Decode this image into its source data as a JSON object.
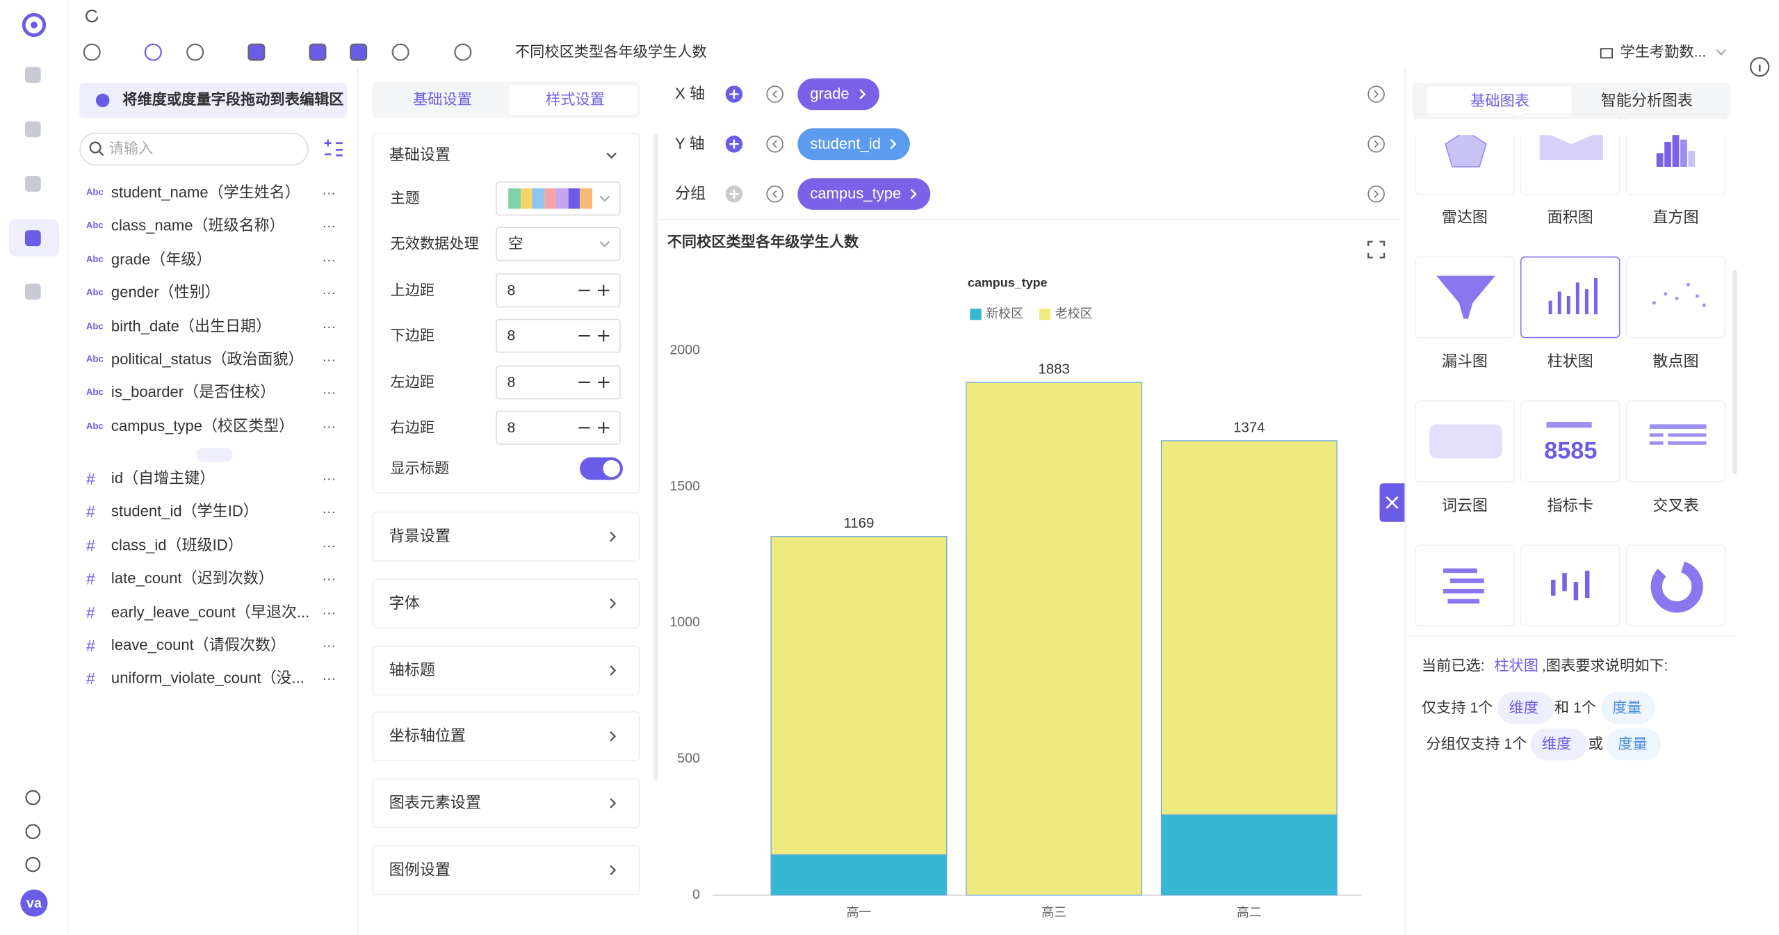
{
  "sidebar": {
    "avatar": "va"
  },
  "toolbar": {
    "title": "不同校区类型各年级学生人数",
    "dataset": "学生考勤数..."
  },
  "fields": {
    "hint": "将维度或度量字段拖动到表编辑区",
    "search_placeholder": "请输入",
    "dimension_tag": "Abc",
    "measure_tag": "#",
    "dimensions": [
      "student_name（学生姓名）",
      "class_name（班级名称）",
      "grade（年级）",
      "gender（性别）",
      "birth_date（出生日期）",
      "political_status（政治面貌）",
      "is_boarder（是否住校）",
      "campus_type（校区类型）"
    ],
    "measures": [
      "id（自增主键）",
      "student_id（学生ID）",
      "class_id（班级ID）",
      "late_count（迟到次数）",
      "early_leave_count（早退次...",
      "leave_count（请假次数）",
      "uniform_violate_count（没..."
    ],
    "more": "···"
  },
  "settings": {
    "tabs": [
      "基础设置",
      "样式设置"
    ],
    "section": "基础设置",
    "theme_label": "主题",
    "invalid_label": "无效数据处理",
    "invalid_value": "空",
    "margins": [
      {
        "label": "上边距",
        "value": "8"
      },
      {
        "label": "下边距",
        "value": "8"
      },
      {
        "label": "左边距",
        "value": "8"
      },
      {
        "label": "右边距",
        "value": "8"
      }
    ],
    "show_title": "显示标题",
    "sections": [
      "背景设置",
      "字体",
      "轴标题",
      "坐标轴位置",
      "图表元素设置",
      "图例设置"
    ]
  },
  "encoding": [
    {
      "label": "X 轴",
      "field": "grade"
    },
    {
      "label": "Y 轴",
      "field": "student_id"
    },
    {
      "label": "分组",
      "field": "campus_type"
    }
  ],
  "chart_data": {
    "type": "bar",
    "stacked": true,
    "title": "不同校区类型各年级学生人数",
    "legend_title": "campus_type",
    "categories": [
      "高一",
      "高三",
      "高二"
    ],
    "series": [
      {
        "name": "新校区",
        "color": "#36b8d4",
        "values": [
          148,
          null,
          295
        ]
      },
      {
        "name": "老校区",
        "color": "#eeea7f",
        "values": [
          1169,
          1883,
          1374
        ]
      }
    ],
    "ylim": [
      0,
      2000
    ],
    "yticks": [
      0,
      500,
      1000,
      1500,
      2000
    ],
    "grid": false
  },
  "chart_types": {
    "tabs": [
      "基础图表",
      "智能分析图表"
    ],
    "names": [
      "雷达图",
      "面积图",
      "直方图",
      "漏斗图",
      "柱状图",
      "散点图",
      "词云图",
      "指标卡",
      "交叉表"
    ],
    "card_value": "8585",
    "selected_prefix": "当前已选:",
    "selected": "柱状图",
    "selected_suffix": ",图表要求说明如下:",
    "req1": [
      "仅支持 1个",
      "维度",
      "和 1个",
      "度量"
    ],
    "req2": [
      "分组仅支持 1个",
      "维度",
      "或",
      "度量"
    ]
  }
}
